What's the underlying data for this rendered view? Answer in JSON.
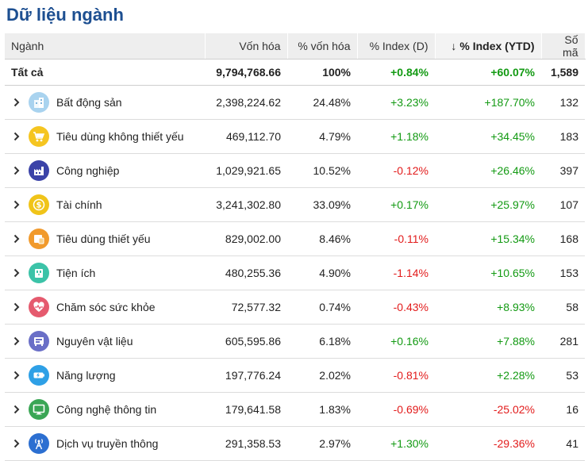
{
  "title": "Dữ liệu ngành",
  "columns": {
    "name": "Ngành",
    "market_cap": "Vốn hóa",
    "cap_pct": "% vốn hóa",
    "index_d": "% Index (D)",
    "index_ytd": "% Index (YTD)",
    "count": "Số mã",
    "sort_arrow": "↓"
  },
  "total": {
    "name": "Tất cả",
    "market_cap": "9,794,768.66",
    "cap_pct": "100%",
    "index_d": "+0.84%",
    "index_ytd": "+60.07%",
    "count": "1,589"
  },
  "rows": [
    {
      "name": "Bất động sản",
      "market_cap": "2,398,224.62",
      "cap_pct": "24.48%",
      "index_d": "+3.23%",
      "index_ytd": "+187.70%",
      "count": "132",
      "icon": "building-icon",
      "color": "#a9d3ef"
    },
    {
      "name": "Tiêu dùng không thiết yếu",
      "market_cap": "469,112.70",
      "cap_pct": "4.79%",
      "index_d": "+1.18%",
      "index_ytd": "+34.45%",
      "count": "183",
      "icon": "cart-icon",
      "color": "#f5c520"
    },
    {
      "name": "Công nghiệp",
      "market_cap": "1,029,921.65",
      "cap_pct": "10.52%",
      "index_d": "-0.12%",
      "index_ytd": "+26.46%",
      "count": "397",
      "icon": "factory-icon",
      "color": "#3b43a8"
    },
    {
      "name": "Tài chính",
      "market_cap": "3,241,302.80",
      "cap_pct": "33.09%",
      "index_d": "+0.17%",
      "index_ytd": "+25.97%",
      "count": "107",
      "icon": "coin-icon",
      "color": "#f0c419"
    },
    {
      "name": "Tiêu dùng thiết yếu",
      "market_cap": "829,002.00",
      "cap_pct": "8.46%",
      "index_d": "-0.11%",
      "index_ytd": "+15.34%",
      "count": "168",
      "icon": "basket-icon",
      "color": "#f19a2c"
    },
    {
      "name": "Tiện ích",
      "market_cap": "480,255.36",
      "cap_pct": "4.90%",
      "index_d": "-1.14%",
      "index_ytd": "+10.65%",
      "count": "153",
      "icon": "utility-icon",
      "color": "#3cc3a8"
    },
    {
      "name": "Chăm sóc sức khỏe",
      "market_cap": "72,577.32",
      "cap_pct": "0.74%",
      "index_d": "-0.43%",
      "index_ytd": "+8.93%",
      "count": "58",
      "icon": "heart-pulse-icon",
      "color": "#e55a6e"
    },
    {
      "name": "Nguyên vật liệu",
      "market_cap": "605,595.86",
      "cap_pct": "6.18%",
      "index_d": "+0.16%",
      "index_ytd": "+7.88%",
      "count": "281",
      "icon": "materials-icon",
      "color": "#6a6fc7"
    },
    {
      "name": "Năng lượng",
      "market_cap": "197,776.24",
      "cap_pct": "2.02%",
      "index_d": "-0.81%",
      "index_ytd": "+2.28%",
      "count": "53",
      "icon": "battery-icon",
      "color": "#2ea0e6"
    },
    {
      "name": "Công nghệ thông tin",
      "market_cap": "179,641.58",
      "cap_pct": "1.83%",
      "index_d": "-0.69%",
      "index_ytd": "-25.02%",
      "count": "16",
      "icon": "monitor-icon",
      "color": "#3aa655"
    },
    {
      "name": "Dịch vụ truyền thông",
      "market_cap": "291,358.53",
      "cap_pct": "2.97%",
      "index_d": "+1.30%",
      "index_ytd": "-29.36%",
      "count": "41",
      "icon": "antenna-icon",
      "color": "#2c6fd1"
    }
  ]
}
